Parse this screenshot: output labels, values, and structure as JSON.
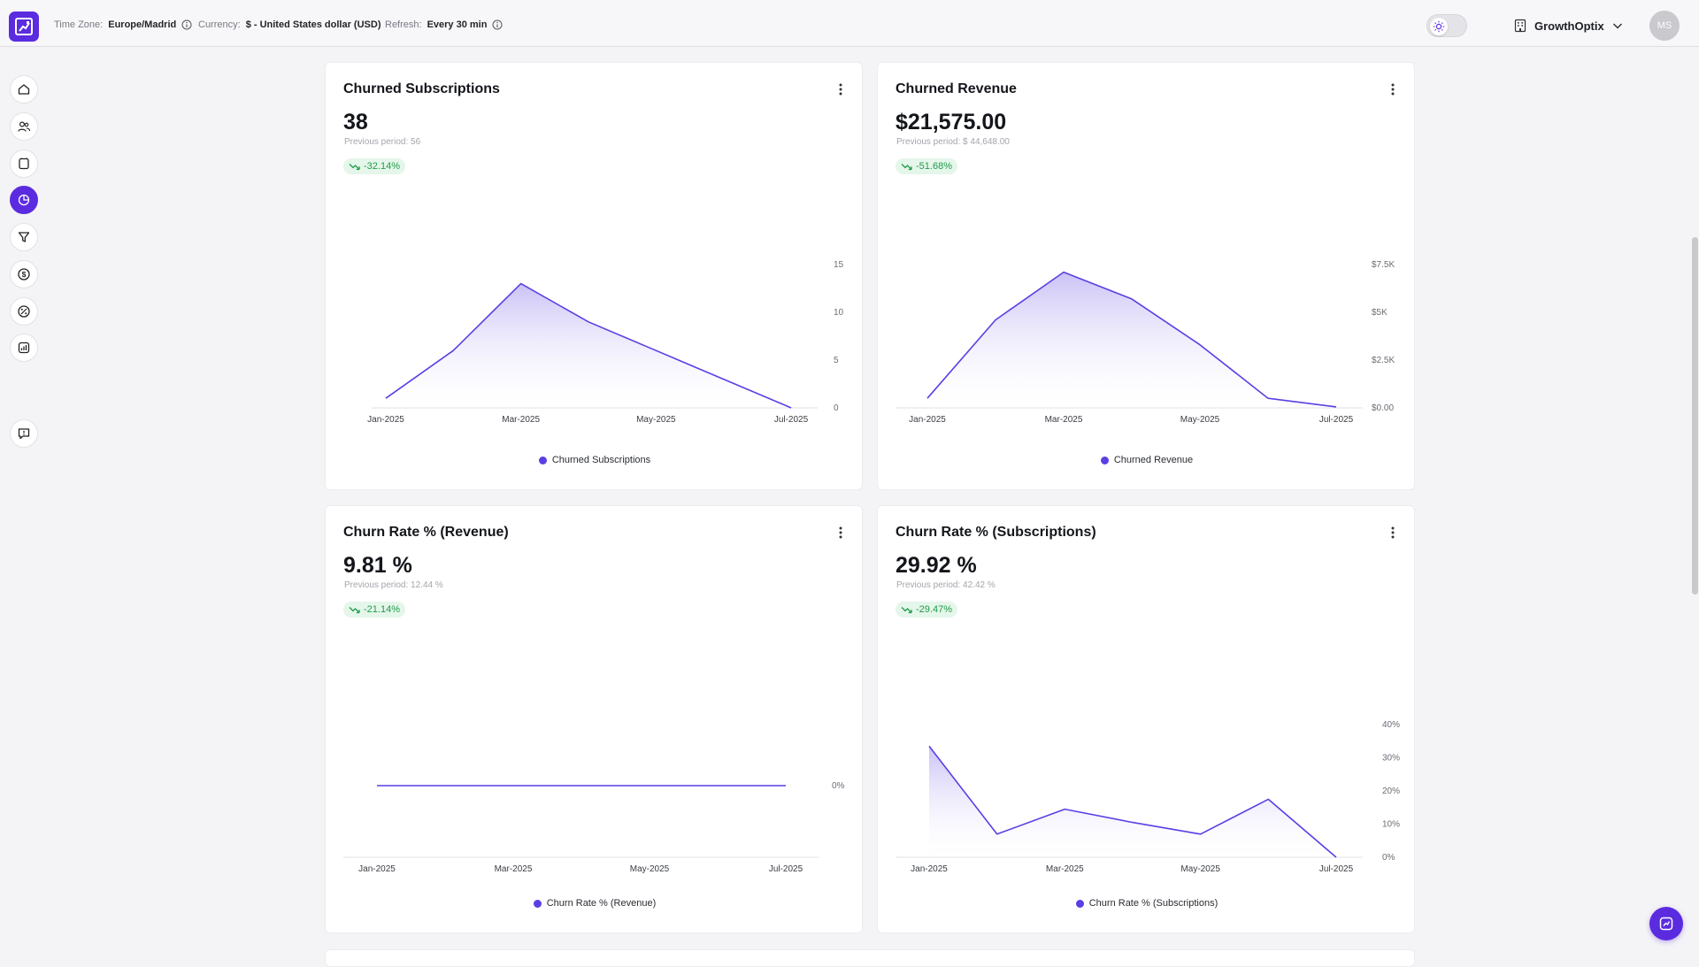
{
  "header": {
    "timezone_label": "Time Zone:",
    "timezone_value": "Europe/Madrid",
    "currency_label": "Currency:",
    "currency_value": "$ - United States dollar (USD)",
    "refresh_label": "Refresh:",
    "refresh_value": "Every 30 min",
    "org_name": "GrowthOptix",
    "avatar_initials": "MS"
  },
  "sidebar": {
    "items": [
      {
        "icon": "home-icon",
        "active": false
      },
      {
        "icon": "users-icon",
        "active": false
      },
      {
        "icon": "subscriptions-icon",
        "active": false
      },
      {
        "icon": "churn-icon",
        "active": true
      },
      {
        "icon": "filter-icon",
        "active": false
      },
      {
        "icon": "dollar-icon",
        "active": false
      },
      {
        "icon": "discount-icon",
        "active": false
      },
      {
        "icon": "reports-icon",
        "active": false
      }
    ],
    "feedback_icon": "feedback-icon"
  },
  "colors": {
    "accent": "#5b2be0",
    "line": "#5b3fe4",
    "positive": "#1f9b4a"
  },
  "cards": [
    {
      "title": "Churned Subscriptions",
      "value": "38",
      "previous": "Previous period: 56",
      "delta": "-32.14%"
    },
    {
      "title": "Churned Revenue",
      "value": "$21,575.00",
      "previous": "Previous period: $ 44,648.00",
      "delta": "-51.68%"
    },
    {
      "title": "Churn Rate % (Revenue)",
      "value": "9.81 %",
      "previous": "Previous period: 12.44 %",
      "delta": "-21.14%"
    },
    {
      "title": "Churn Rate % (Subscriptions)",
      "value": "29.92 %",
      "previous": "Previous period: 42.42 %",
      "delta": "-29.47%"
    }
  ],
  "chart_data": [
    {
      "type": "area",
      "x": [
        "Jan-2025",
        "Feb-2025",
        "Mar-2025",
        "Apr-2025",
        "May-2025",
        "Jun-2025",
        "Jul-2025"
      ],
      "x_tick_labels": [
        "Jan-2025",
        "Mar-2025",
        "May-2025",
        "Jul-2025"
      ],
      "series": [
        {
          "name": "Churned Subscriptions",
          "values": [
            1,
            6,
            13,
            9,
            6,
            3,
            0
          ]
        }
      ],
      "ylim": [
        0,
        15
      ],
      "y_ticks": [
        0,
        5,
        10,
        15
      ],
      "y_tick_labels": [
        "0",
        "5",
        "10",
        "15"
      ],
      "y_axis_side": "right",
      "legend": "bottom"
    },
    {
      "type": "area",
      "x": [
        "Jan-2025",
        "Feb-2025",
        "Mar-2025",
        "Apr-2025",
        "May-2025",
        "Jun-2025",
        "Jul-2025"
      ],
      "x_tick_labels": [
        "Jan-2025",
        "Mar-2025",
        "May-2025",
        "Jul-2025"
      ],
      "series": [
        {
          "name": "Churned Revenue",
          "values": [
            500,
            4600,
            7100,
            5700,
            3300,
            500,
            50
          ]
        }
      ],
      "ylim": [
        0,
        7500
      ],
      "y_ticks": [
        0,
        2500,
        5000,
        7500
      ],
      "y_tick_labels": [
        "$0.00",
        "$2.5K",
        "$5K",
        "$7.5K"
      ],
      "y_axis_side": "right",
      "legend": "bottom"
    },
    {
      "type": "line",
      "x": [
        "Jan-2025",
        "Feb-2025",
        "Mar-2025",
        "Apr-2025",
        "May-2025",
        "Jun-2025",
        "Jul-2025"
      ],
      "x_tick_labels": [
        "Jan-2025",
        "Mar-2025",
        "May-2025",
        "Jul-2025"
      ],
      "series": [
        {
          "name": "Churn Rate % (Revenue)",
          "values": [
            0,
            0,
            0,
            0,
            0,
            0,
            0
          ]
        }
      ],
      "y_ticks": [
        0
      ],
      "y_tick_labels": [
        "0%"
      ],
      "y_axis_side": "right",
      "legend": "bottom"
    },
    {
      "type": "area",
      "x": [
        "Jan-2025",
        "Feb-2025",
        "Mar-2025",
        "Apr-2025",
        "May-2025",
        "Jun-2025",
        "Jul-2025"
      ],
      "x_tick_labels": [
        "Jan-2025",
        "Mar-2025",
        "May-2025",
        "Jul-2025"
      ],
      "series": [
        {
          "name": "Churn Rate % (Subscriptions)",
          "values": [
            33.5,
            7,
            14.5,
            10.5,
            7,
            17.5,
            0
          ]
        }
      ],
      "ylim": [
        0,
        40
      ],
      "y_ticks": [
        0,
        10,
        20,
        30,
        40
      ],
      "y_tick_labels": [
        "0%",
        "10%",
        "20%",
        "30%",
        "40%"
      ],
      "y_axis_side": "right",
      "legend": "bottom"
    }
  ]
}
